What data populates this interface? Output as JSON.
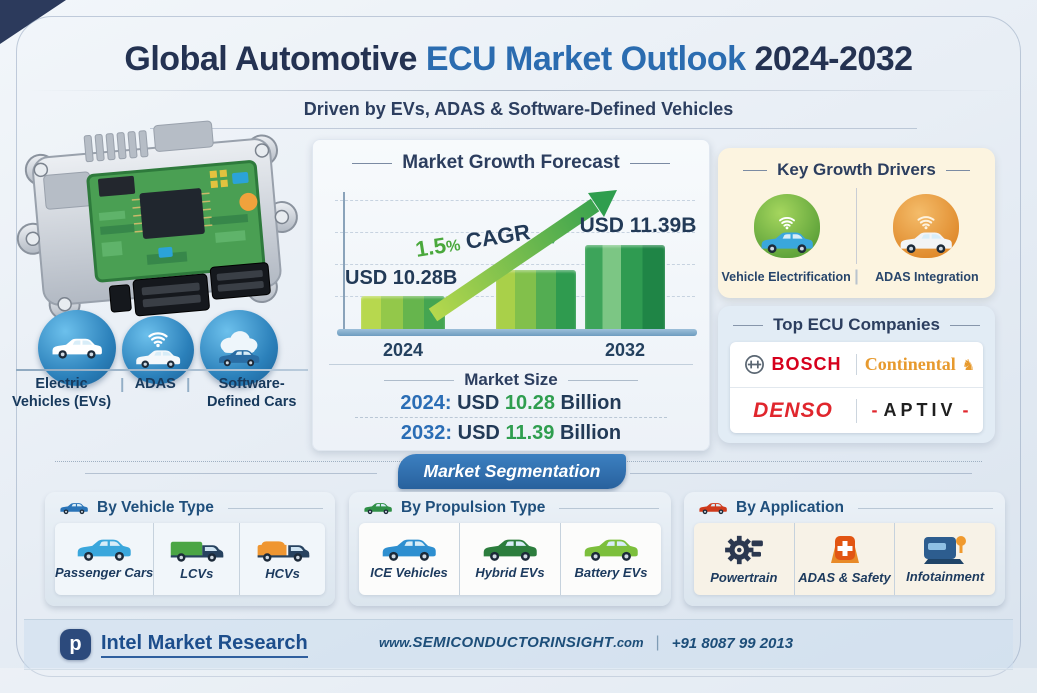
{
  "header": {
    "title_prefix": "Global Automotive ",
    "title_highlight": "ECU Market Outlook",
    "title_suffix": " 2024-2032",
    "subtitle": "Driven by EVs, ADAS & Software-Defined Vehicles"
  },
  "left": {
    "separator": "|",
    "tags": [
      {
        "label": "Electric Vehicles (EVs)",
        "icon": "ev-car-icon"
      },
      {
        "label": "ADAS",
        "icon": "adas-signal-car-icon"
      },
      {
        "label": "Software-Defined Cars",
        "icon": "cloud-car-icon"
      }
    ]
  },
  "forecast": {
    "title": "Market Growth Forecast",
    "cagr": {
      "value": "1.5",
      "percent": "%",
      "label": "CAGR"
    },
    "start": {
      "label": "USD 10.28B",
      "year": "2024"
    },
    "end": {
      "label": "USD 11.39B",
      "year": "2032"
    },
    "market_size": {
      "title": "Market Size",
      "rows": [
        {
          "year": "2024:",
          "currency": "USD",
          "value": "10.28",
          "unit": "Billion"
        },
        {
          "year": "2032:",
          "currency": "USD",
          "value": "11.39",
          "unit": "Billion"
        }
      ]
    }
  },
  "chart_data": {
    "type": "bar",
    "title": "Market Growth Forecast",
    "categories": [
      "2024",
      "",
      "2032"
    ],
    "values": [
      10.28,
      10.85,
      11.39
    ],
    "unit": "USD Billion",
    "ylim": [
      9.6,
      12
    ],
    "grid": "dashed-horizontal",
    "annotations": [
      "USD 10.28B",
      "1.5% CAGR",
      "USD 11.39B"
    ],
    "bar_style": "green-gradient-striped"
  },
  "drivers": {
    "title": "Key Growth Drivers",
    "separator": "|",
    "items": [
      {
        "label": "Vehicle Electrification",
        "icon": "electric-car-icon"
      },
      {
        "label": "ADAS Integration",
        "icon": "adas-car-icon"
      }
    ]
  },
  "companies": {
    "title": "Top ECU Companies",
    "items": [
      {
        "name": "BOSCH",
        "icon": "bosch-armature-icon"
      },
      {
        "name": "Continental",
        "glyph": "♞"
      },
      {
        "name": "DENSO"
      },
      {
        "name": "APTIV",
        "dash": "-"
      }
    ]
  },
  "segmentation": {
    "banner": "Market Segmentation",
    "panels": [
      {
        "title": "By Vehicle Type",
        "icon": "blue-car-icon",
        "items": [
          {
            "label": "Passenger Cars",
            "icon": "passenger-car-icon"
          },
          {
            "label": "LCVs",
            "icon": "lcv-van-icon"
          },
          {
            "label": "HCVs",
            "icon": "hcv-truck-icon"
          }
        ]
      },
      {
        "title": "By Propulsion Type",
        "icon": "green-car-icon",
        "items": [
          {
            "label": "ICE Vehicles",
            "icon": "ice-car-icon"
          },
          {
            "label": "Hybrid EVs",
            "icon": "hybrid-car-icon"
          },
          {
            "label": "Battery EVs",
            "icon": "battery-car-icon"
          }
        ]
      },
      {
        "title": "By Application",
        "icon": "red-car-icon",
        "items": [
          {
            "label": "Powertrain",
            "icon": "engine-gear-icon"
          },
          {
            "label": "ADAS & Safety",
            "icon": "safety-shield-icon"
          },
          {
            "label": "Infotainment",
            "icon": "infotainment-screen-icon"
          }
        ]
      }
    ]
  },
  "footer": {
    "logo_letter": "p",
    "brand": "Intel Market Research",
    "website_prefix": "www.",
    "website_domain": "SEMICONDUCTORINSIGHT",
    "website_tld": ".com",
    "separator": "|",
    "phone": "+91 8087 99 2013"
  }
}
